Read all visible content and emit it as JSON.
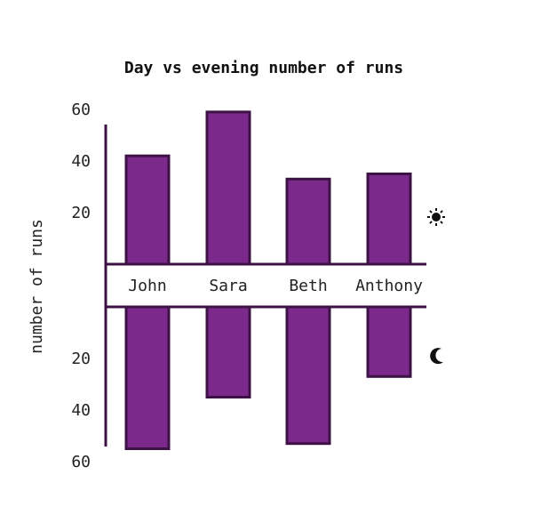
{
  "chart_data": {
    "type": "bar",
    "title": "Day vs evening number of runs",
    "ylabel": "number of runs",
    "categories": [
      "John",
      "Sara",
      "Beth",
      "Anthony"
    ],
    "series": [
      {
        "values": [
          42,
          59,
          33,
          35
        ]
      },
      {
        "values": [
          55,
          35,
          53,
          27
        ]
      }
    ],
    "yticks_top": [
      20,
      40,
      60
    ],
    "yticks_bottom": [
      20,
      40,
      60
    ],
    "ylim": [
      0,
      65
    ],
    "colors": {
      "bar_fill": "#7b2a8b",
      "bar_stroke": "#3d1245",
      "axis": "#3d1245"
    },
    "icons": {
      "top": "sun-icon",
      "bottom": "moon-icon"
    }
  }
}
